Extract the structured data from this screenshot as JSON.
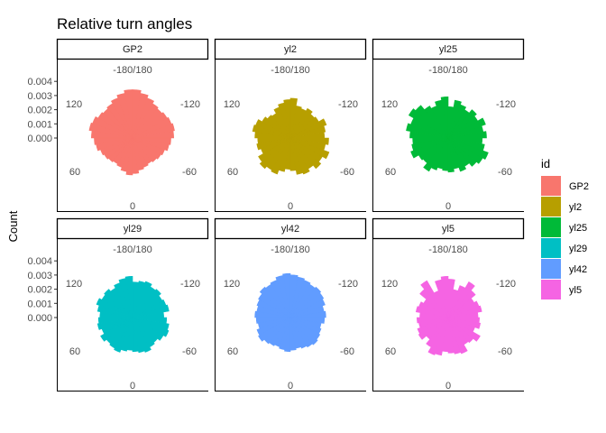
{
  "chart_data": {
    "type": "polar_histogram",
    "title": "Relative turn angles",
    "ylabel": "Count",
    "xlabel": "",
    "y_ticks": [
      "0.004",
      "0.003",
      "0.002",
      "0.001",
      "0.000"
    ],
    "y_tick_values": [
      0.004,
      0.003,
      0.002,
      0.001,
      0.0
    ],
    "angle_labels": {
      "top": "-180/180",
      "upper_left": "120",
      "upper_right": "-120",
      "lower_left": "60",
      "lower_right": "-60",
      "bottom": "0"
    },
    "legend": {
      "title": "id",
      "position": "right",
      "entries": [
        {
          "name": "GP2",
          "color": "#F8766D"
        },
        {
          "name": "yl2",
          "color": "#B79F00"
        },
        {
          "name": "yl25",
          "color": "#00BA38"
        },
        {
          "name": "yl29",
          "color": "#00BFC4"
        },
        {
          "name": "yl42",
          "color": "#619CFF"
        },
        {
          "name": "yl5",
          "color": "#F564E3"
        }
      ]
    },
    "bin_width_degrees": 10,
    "bin_centers_degrees": [
      -175,
      -165,
      -155,
      -145,
      -135,
      -125,
      -115,
      -105,
      -95,
      -85,
      -75,
      -65,
      -55,
      -45,
      -35,
      -25,
      -15,
      -5,
      5,
      15,
      25,
      35,
      45,
      55,
      65,
      75,
      85,
      95,
      105,
      115,
      125,
      135,
      145,
      155,
      165,
      175
    ],
    "series": [
      {
        "name": "GP2",
        "color": "#F8766D",
        "values": [
          0.0034,
          0.0032,
          0.003,
          0.0028,
          0.0027,
          0.0028,
          0.003,
          0.0031,
          0.0029,
          0.0027,
          0.0026,
          0.0024,
          0.0023,
          0.0022,
          0.0021,
          0.0022,
          0.0024,
          0.0026,
          0.0025,
          0.0023,
          0.0022,
          0.0021,
          0.0022,
          0.0023,
          0.0024,
          0.0026,
          0.0027,
          0.0029,
          0.003,
          0.0029,
          0.0028,
          0.0027,
          0.0028,
          0.003,
          0.0032,
          0.0034
        ]
      },
      {
        "name": "yl2",
        "color": "#B79F00",
        "values": [
          0.0027,
          0.0025,
          0.0023,
          0.002,
          0.0021,
          0.0023,
          0.0026,
          0.0027,
          0.0025,
          0.0023,
          0.0024,
          0.0022,
          0.0026,
          0.0028,
          0.0026,
          0.0027,
          0.0024,
          0.0022,
          0.0023,
          0.0026,
          0.0027,
          0.0025,
          0.0028,
          0.0026,
          0.0029,
          0.0025,
          0.0027,
          0.0024,
          0.0025,
          0.0027,
          0.0023,
          0.0022,
          0.0024,
          0.0022,
          0.0023,
          0.0028
        ]
      },
      {
        "name": "yl25",
        "color": "#00BA38",
        "values": [
          0.0029,
          0.0027,
          0.0024,
          0.0026,
          0.003,
          0.0032,
          0.0028,
          0.003,
          0.0027,
          0.0025,
          0.0026,
          0.0028,
          0.0024,
          0.0023,
          0.0027,
          0.0024,
          0.0022,
          0.0023,
          0.0024,
          0.0022,
          0.0025,
          0.0023,
          0.0026,
          0.0028,
          0.003,
          0.0026,
          0.0024,
          0.0027,
          0.0025,
          0.0028,
          0.0024,
          0.0026,
          0.0023,
          0.0025,
          0.0027,
          0.0022
        ]
      },
      {
        "name": "yl29",
        "color": "#00BFC4",
        "values": [
          0.0029,
          0.0028,
          0.0026,
          0.0024,
          0.0026,
          0.0025,
          0.0027,
          0.0025,
          0.0023,
          0.0024,
          0.0025,
          0.0023,
          0.0026,
          0.0024,
          0.0025,
          0.0026,
          0.0024,
          0.0023,
          0.0024,
          0.0025,
          0.0026,
          0.0024,
          0.0023,
          0.0025,
          0.0027,
          0.0026,
          0.0024,
          0.0022,
          0.0026,
          0.0025,
          0.0024,
          0.0026,
          0.0025,
          0.0027,
          0.0026,
          0.0025
        ]
      },
      {
        "name": "yl42",
        "color": "#619CFF",
        "values": [
          0.0031,
          0.003,
          0.0028,
          0.0027,
          0.0028,
          0.0026,
          0.0025,
          0.0024,
          0.0025,
          0.0024,
          0.0023,
          0.0025,
          0.0026,
          0.0024,
          0.0023,
          0.0022,
          0.0023,
          0.0024,
          0.0023,
          0.0022,
          0.0023,
          0.0024,
          0.0025,
          0.0024,
          0.0023,
          0.0022,
          0.0024,
          0.0025,
          0.0024,
          0.0026,
          0.0027,
          0.0028,
          0.0027,
          0.0028,
          0.0029,
          0.003
        ]
      },
      {
        "name": "yl5",
        "color": "#F564E3",
        "values": [
          0.0029,
          0.0027,
          0.002,
          0.003,
          0.0026,
          0.002,
          0.0022,
          0.0023,
          0.002,
          0.0022,
          0.0021,
          0.0023,
          0.0024,
          0.002,
          0.0024,
          0.0028,
          0.0027,
          0.0024,
          0.0025,
          0.0026,
          0.0027,
          0.0022,
          0.0023,
          0.0026,
          0.002,
          0.0023,
          0.0022,
          0.0021,
          0.0024,
          0.0023,
          0.0021,
          0.0025,
          0.0029,
          0.0024,
          0.002,
          0.0027
        ]
      }
    ],
    "grid": false
  }
}
